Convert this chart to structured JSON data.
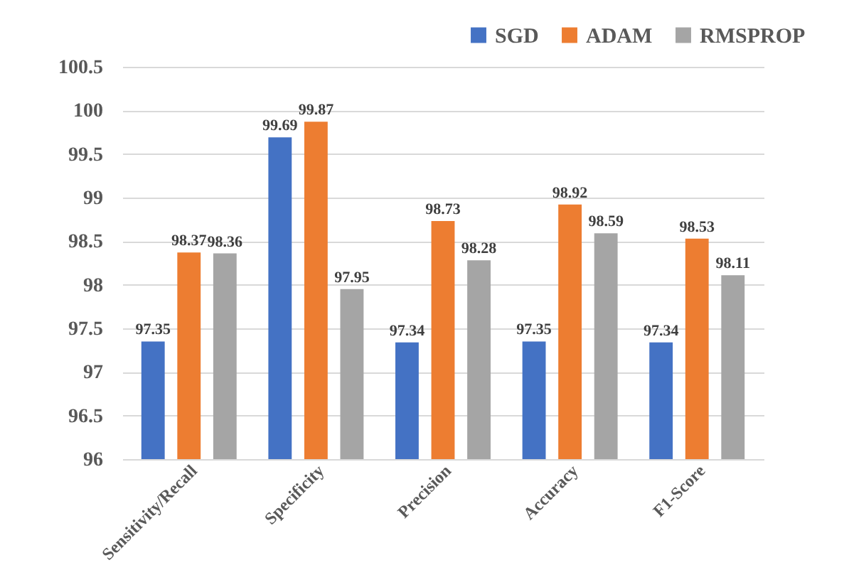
{
  "chart_data": {
    "type": "bar",
    "categories": [
      "Sensitivity/Recall",
      "Specificity",
      "Precision",
      "Accuracy",
      "F1-Score"
    ],
    "series": [
      {
        "name": "SGD",
        "color": "#4472c4",
        "values": [
          97.35,
          99.69,
          97.34,
          97.35,
          97.34
        ]
      },
      {
        "name": "ADAM",
        "color": "#ed7d31",
        "values": [
          98.37,
          99.87,
          98.73,
          98.92,
          98.53
        ]
      },
      {
        "name": "RMSPROP",
        "color": "#a5a5a5",
        "values": [
          98.36,
          97.95,
          98.28,
          98.59,
          98.11
        ]
      }
    ],
    "ylim": [
      96,
      100.5
    ],
    "yticks": [
      96,
      96.5,
      97,
      97.5,
      98,
      98.5,
      99,
      99.5,
      100,
      100.5
    ],
    "grid": "y",
    "legend": "top right",
    "data_labels": true
  }
}
